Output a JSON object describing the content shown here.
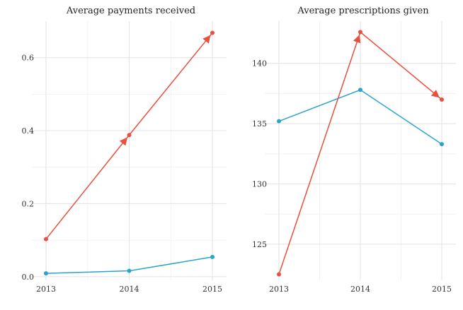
{
  "chart_data": [
    {
      "type": "line",
      "title": "Average payments received",
      "xlabel": "",
      "ylabel": "",
      "x": [
        2013,
        2014,
        2015
      ],
      "x_ticks": [
        "2013",
        "2014",
        "2015"
      ],
      "ylim": [
        -0.01,
        0.7
      ],
      "y_ticks": [
        0.0,
        0.2,
        0.4,
        0.6
      ],
      "y_tick_labels": [
        "0.0",
        "0.2",
        "0.4",
        "0.6"
      ],
      "grid": true,
      "legend": "none",
      "series": [
        {
          "color": "#e8503f",
          "values": [
            0.103,
            0.388,
            0.668
          ],
          "arrows": true
        },
        {
          "color": "#2aa5c9",
          "values": [
            0.009,
            0.016,
            0.054
          ],
          "arrows": false
        }
      ]
    },
    {
      "type": "line",
      "title": "Average prescriptions given",
      "xlabel": "",
      "ylabel": "",
      "x": [
        2013,
        2014,
        2015
      ],
      "x_ticks": [
        "2013",
        "2014",
        "2015"
      ],
      "ylim": [
        122.0,
        143.5
      ],
      "y_ticks": [
        125,
        130,
        135,
        140
      ],
      "y_tick_labels": [
        "125",
        "130",
        "135",
        "140"
      ],
      "grid": true,
      "legend": "none",
      "series": [
        {
          "color": "#e8503f",
          "values": [
            122.5,
            142.6,
            137.0
          ],
          "arrows": true
        },
        {
          "color": "#2aa5c9",
          "values": [
            135.2,
            137.8,
            133.3
          ],
          "arrows": false
        }
      ]
    }
  ]
}
